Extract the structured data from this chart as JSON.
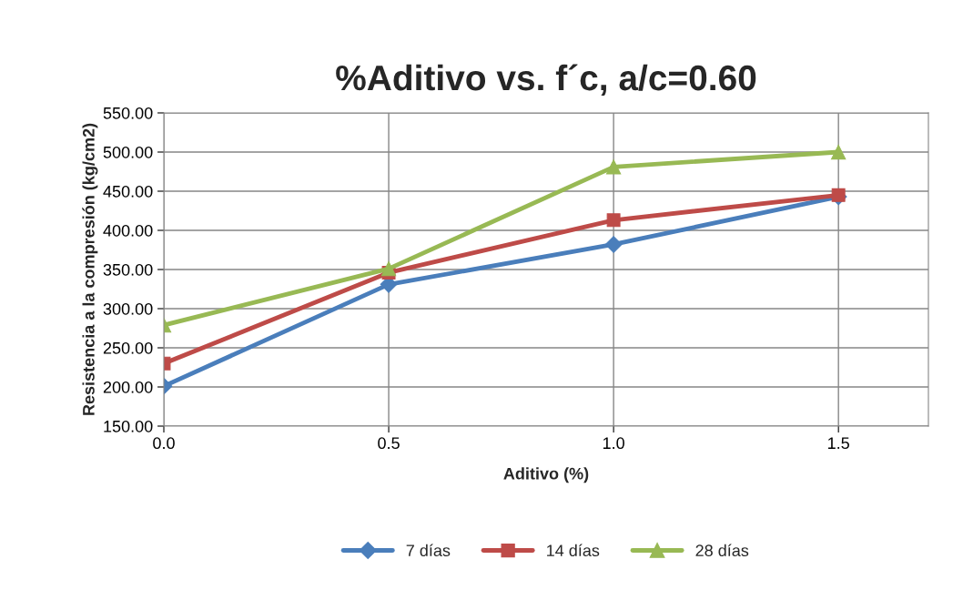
{
  "chart_data": {
    "type": "line",
    "title": "%Aditivo vs. f´c, a/c=0.60",
    "xlabel": "Aditivo (%)",
    "ylabel": "Resistencia a la compresión (kg/cm2)",
    "x": [
      0.0,
      0.5,
      1.0,
      1.5
    ],
    "series": [
      {
        "name": "7 días",
        "color": "#4a7ebb",
        "marker": "diamond",
        "values": [
          201,
          331,
          382,
          443
        ]
      },
      {
        "name": "14 días",
        "color": "#be4b48",
        "marker": "square",
        "values": [
          230,
          346,
          413,
          445
        ]
      },
      {
        "name": "28 días",
        "color": "#98b954",
        "marker": "triangle",
        "values": [
          279,
          351,
          481,
          500
        ]
      }
    ],
    "xlim": [
      0,
      1.7
    ],
    "xticks": [
      {
        "value": 0,
        "label": "0.0"
      },
      {
        "value": 0.5,
        "label": "0.5"
      },
      {
        "value": 1.0,
        "label": "1.0"
      },
      {
        "value": 1.5,
        "label": "1.5"
      }
    ],
    "ylim": [
      150,
      550
    ],
    "yticks": [
      {
        "value": 150,
        "label": "150.00"
      },
      {
        "value": 200,
        "label": "200.00"
      },
      {
        "value": 250,
        "label": "250.00"
      },
      {
        "value": 300,
        "label": "300.00"
      },
      {
        "value": 350,
        "label": "350.00"
      },
      {
        "value": 400,
        "label": "400.00"
      },
      {
        "value": 450,
        "label": "450.00"
      },
      {
        "value": 500,
        "label": "500.00"
      },
      {
        "value": 550,
        "label": "550.00"
      }
    ],
    "grid": true,
    "legend": "bottom",
    "line_style": "solid"
  }
}
